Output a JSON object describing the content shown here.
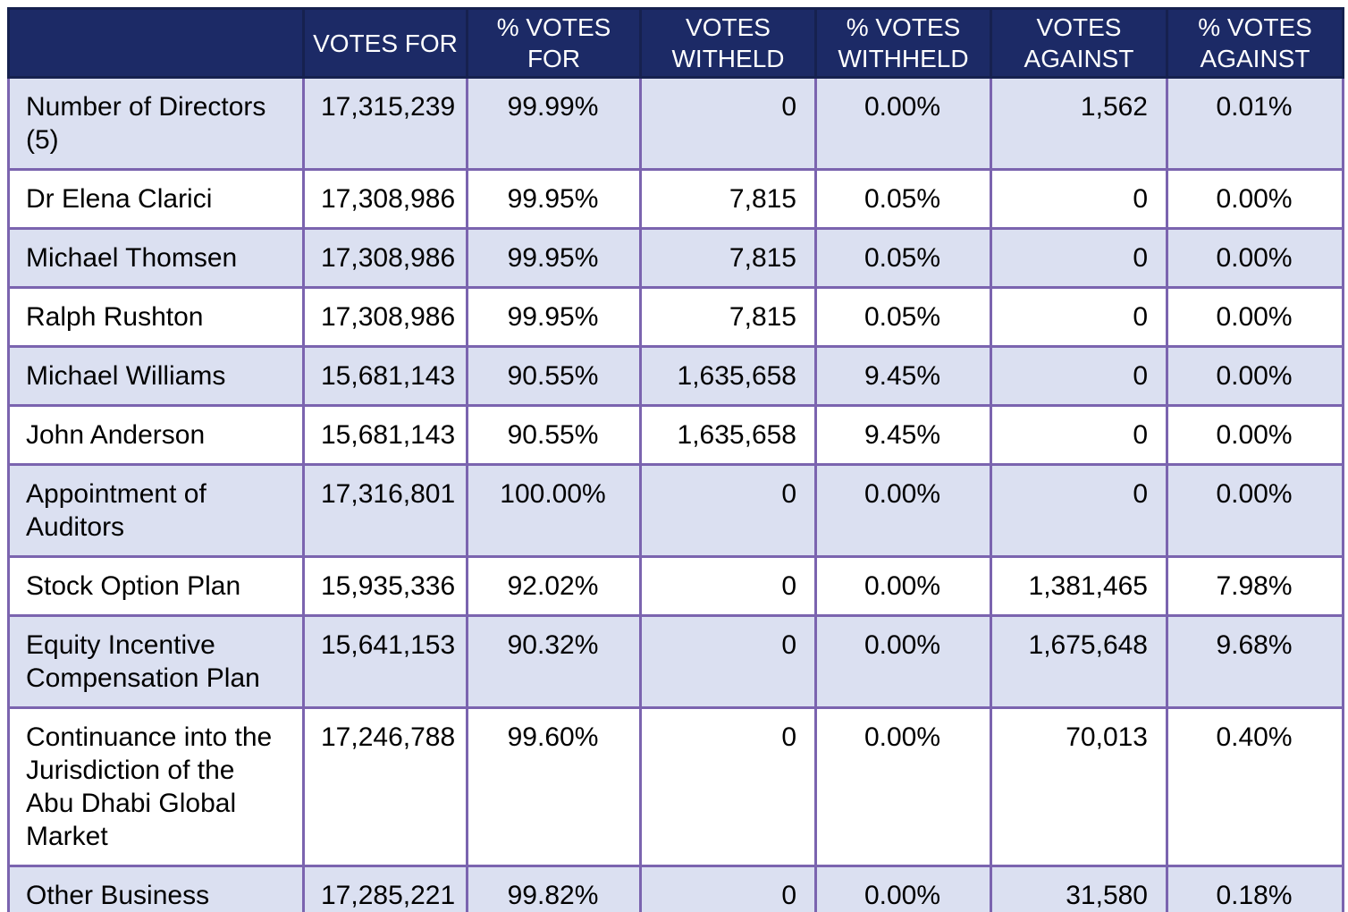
{
  "colors": {
    "header_bg": "#1c2a66",
    "header_border": "#16214f",
    "header_text": "#ffffff",
    "grid_border": "#7b64af",
    "row_alt_bg": "#dbe0f1",
    "row_bg": "#ffffff",
    "text": "#000000"
  },
  "header": {
    "cells": [
      "",
      "VOTES FOR",
      "% VOTES FOR",
      "VOTES WITHELD",
      "% VOTES WITHHELD",
      "VOTES AGAINST",
      "% VOTES AGAINST"
    ]
  },
  "column_semantics": [
    "resolution-label",
    "votes-for-cell",
    "pct-votes-for-cell",
    "votes-withheld-cell",
    "pct-votes-withheld-cell",
    "votes-against-cell",
    "pct-votes-against-cell"
  ],
  "rows": [
    {
      "label": "Number of Directors (5)",
      "values": [
        "17,315,239",
        "99.99%",
        "0",
        "0.00%",
        "1,562",
        "0.01%"
      ]
    },
    {
      "label": "Dr Elena Clarici",
      "values": [
        "17,308,986",
        "99.95%",
        "7,815",
        "0.05%",
        "0",
        "0.00%"
      ]
    },
    {
      "label": "Michael Thomsen",
      "values": [
        "17,308,986",
        "99.95%",
        "7,815",
        "0.05%",
        "0",
        "0.00%"
      ]
    },
    {
      "label": "Ralph Rushton",
      "values": [
        "17,308,986",
        "99.95%",
        "7,815",
        "0.05%",
        "0",
        "0.00%"
      ]
    },
    {
      "label": "Michael Williams",
      "values": [
        "15,681,143",
        "90.55%",
        "1,635,658",
        "9.45%",
        "0",
        "0.00%"
      ]
    },
    {
      "label": "John Anderson",
      "values": [
        "15,681,143",
        "90.55%",
        "1,635,658",
        "9.45%",
        "0",
        "0.00%"
      ]
    },
    {
      "label": "Appointment of Auditors",
      "values": [
        "17,316,801",
        "100.00%",
        "0",
        "0.00%",
        "0",
        "0.00%"
      ]
    },
    {
      "label": "Stock Option Plan",
      "values": [
        "15,935,336",
        "92.02%",
        "0",
        "0.00%",
        "1,381,465",
        "7.98%"
      ]
    },
    {
      "label": "Equity Incentive Compensation Plan",
      "values": [
        "15,641,153",
        "90.32%",
        "0",
        "0.00%",
        "1,675,648",
        "9.68%"
      ]
    },
    {
      "label": "Continuance into the Jurisdiction of the Abu Dhabi Global Market",
      "values": [
        "17,246,788",
        "99.60%",
        "0",
        "0.00%",
        "70,013",
        "0.40%"
      ]
    },
    {
      "label": "Other Business",
      "values": [
        "17,285,221",
        "99.82%",
        "0",
        "0.00%",
        "31,580",
        "0.18%"
      ]
    }
  ]
}
